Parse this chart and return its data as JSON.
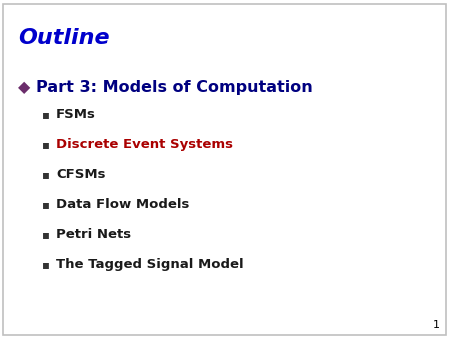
{
  "title": "Outline",
  "title_color": "#0000cc",
  "title_fontstyle": "italic",
  "title_fontweight": "bold",
  "title_fontsize": 16,
  "background_color": "#ffffff",
  "border_color": "#c0c0c0",
  "main_bullet_text": "Part 3: Models of Computation",
  "main_bullet_color": "#000080",
  "main_bullet_fontsize": 11.5,
  "main_bullet_symbol": "◆",
  "main_bullet_symbol_color": "#6b2d6b",
  "sub_bullets": [
    {
      "text": "FSMs",
      "color": "#1a1a1a"
    },
    {
      "text": "Discrete Event Systems",
      "color": "#aa0000"
    },
    {
      "text": "CFSMs",
      "color": "#1a1a1a"
    },
    {
      "text": "Data Flow Models",
      "color": "#1a1a1a"
    },
    {
      "text": "Petri Nets",
      "color": "#1a1a1a"
    },
    {
      "text": "The Tagged Signal Model",
      "color": "#1a1a1a"
    }
  ],
  "sub_bullet_symbol": "▪",
  "sub_bullet_fontsize": 9.5,
  "page_number": "1",
  "page_number_color": "#000000",
  "page_number_fontsize": 8
}
